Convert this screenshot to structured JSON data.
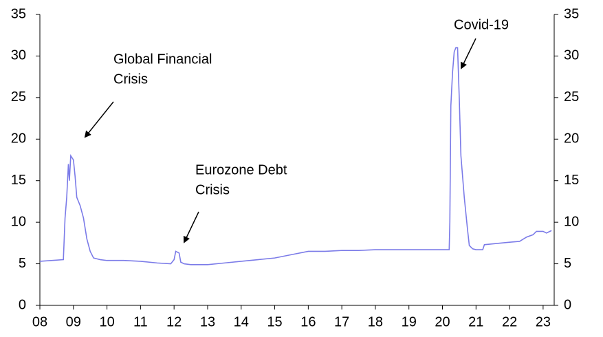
{
  "chart_data": {
    "type": "line",
    "x": [
      2008.0,
      2008.7,
      2008.75,
      2008.8,
      2008.85,
      2008.88,
      2008.92,
      2009.0,
      2009.05,
      2009.1,
      2009.2,
      2009.3,
      2009.4,
      2009.5,
      2009.6,
      2009.8,
      2010.0,
      2010.5,
      2011.0,
      2011.5,
      2011.9,
      2012.0,
      2012.05,
      2012.15,
      2012.2,
      2012.3,
      2012.5,
      2013.0,
      2013.5,
      2014.0,
      2014.5,
      2015.0,
      2015.5,
      2016.0,
      2016.5,
      2017.0,
      2017.5,
      2018.0,
      2018.5,
      2019.0,
      2019.5,
      2020.0,
      2020.2,
      2020.22,
      2020.25,
      2020.3,
      2020.35,
      2020.4,
      2020.45,
      2020.5,
      2020.55,
      2020.6,
      2020.65,
      2020.75,
      2020.8,
      2020.9,
      2021.0,
      2021.2,
      2021.25,
      2021.5,
      2022.0,
      2022.3,
      2022.5,
      2022.7,
      2022.8,
      2023.0,
      2023.1,
      2023.25
    ],
    "series": [
      {
        "color": "#7b7be8",
        "values": [
          5.3,
          5.5,
          10.5,
          13,
          17,
          15,
          18,
          17.5,
          15.5,
          13,
          12,
          10.5,
          8,
          6.5,
          5.7,
          5.5,
          5.4,
          5.4,
          5.3,
          5.1,
          5.0,
          5.5,
          6.5,
          6.3,
          5.2,
          5.0,
          4.9,
          4.9,
          5.1,
          5.3,
          5.5,
          5.7,
          6.1,
          6.5,
          6.5,
          6.6,
          6.6,
          6.7,
          6.7,
          6.7,
          6.7,
          6.7,
          6.7,
          10,
          24,
          28,
          30.5,
          31,
          31,
          25,
          18,
          15.5,
          13,
          9,
          7.2,
          6.8,
          6.7,
          6.7,
          7.3,
          7.4,
          7.6,
          7.7,
          8.2,
          8.5,
          8.9,
          8.9,
          8.7,
          9.0
        ]
      }
    ],
    "xlim": [
      2008,
      2023.33
    ],
    "xticks": [
      {
        "value": 2008,
        "label": "08"
      },
      {
        "value": 2009,
        "label": "09"
      },
      {
        "value": 2010,
        "label": "10"
      },
      {
        "value": 2011,
        "label": "11"
      },
      {
        "value": 2012,
        "label": "12"
      },
      {
        "value": 2013,
        "label": "13"
      },
      {
        "value": 2014,
        "label": "14"
      },
      {
        "value": 2015,
        "label": "15"
      },
      {
        "value": 2016,
        "label": "16"
      },
      {
        "value": 2017,
        "label": "17"
      },
      {
        "value": 2018,
        "label": "18"
      },
      {
        "value": 2019,
        "label": "19"
      },
      {
        "value": 2020,
        "label": "20"
      },
      {
        "value": 2021,
        "label": "21"
      },
      {
        "value": 2022,
        "label": "22"
      },
      {
        "value": 2023,
        "label": "23"
      }
    ],
    "ylim": [
      0,
      35
    ],
    "yticks": [
      0,
      5,
      10,
      15,
      20,
      25,
      30,
      35
    ],
    "y2lim": [
      0,
      35
    ],
    "y2ticks": [
      0,
      5,
      10,
      15,
      20,
      25,
      30,
      35
    ],
    "annotations": [
      {
        "lines": [
          "Global Financial",
          "Crisis"
        ]
      },
      {
        "lines": [
          "Eurozone Debt",
          "Crisis"
        ]
      },
      {
        "lines": [
          "Covid-19"
        ]
      }
    ]
  }
}
